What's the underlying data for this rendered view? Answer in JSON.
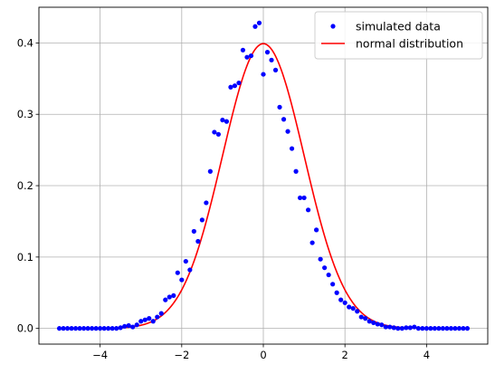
{
  "chart_data": {
    "type": "scatter",
    "title": "",
    "xlabel": "",
    "ylabel": "",
    "xlim": [
      -5.5,
      5.5
    ],
    "ylim": [
      -0.022,
      0.45
    ],
    "grid": true,
    "legend_position": "top-right",
    "x_ticks": [
      {
        "value": -4,
        "label": "−4"
      },
      {
        "value": -2,
        "label": "−2"
      },
      {
        "value": 0,
        "label": "0"
      },
      {
        "value": 2,
        "label": "2"
      },
      {
        "value": 4,
        "label": "4"
      }
    ],
    "y_ticks": [
      {
        "value": 0.0,
        "label": "0.0"
      },
      {
        "value": 0.1,
        "label": "0.1"
      },
      {
        "value": 0.2,
        "label": "0.2"
      },
      {
        "value": 0.3,
        "label": "0.3"
      },
      {
        "value": 0.4,
        "label": "0.4"
      }
    ],
    "series": [
      {
        "name": "simulated data",
        "style": "points",
        "color": "#0000ff",
        "x": [
          -5.0,
          -4.9,
          -4.8,
          -4.7,
          -4.6,
          -4.5,
          -4.4,
          -4.3,
          -4.2,
          -4.1,
          -4.0,
          -3.9,
          -3.8,
          -3.7,
          -3.6,
          -3.5,
          -3.4,
          -3.3,
          -3.2,
          -3.1,
          -3.0,
          -2.9,
          -2.8,
          -2.7,
          -2.6,
          -2.5,
          -2.4,
          -2.3,
          -2.2,
          -2.1,
          -2.0,
          -1.9,
          -1.8,
          -1.7,
          -1.6,
          -1.5,
          -1.4,
          -1.3,
          -1.2,
          -1.1,
          -1.0,
          -0.9,
          -0.8,
          -0.7,
          -0.6,
          -0.5,
          -0.4,
          -0.3,
          -0.2,
          -0.1,
          0.0,
          0.1,
          0.2,
          0.3,
          0.4,
          0.5,
          0.6,
          0.7,
          0.8,
          0.9,
          1.0,
          1.1,
          1.2,
          1.3,
          1.4,
          1.5,
          1.6,
          1.7,
          1.8,
          1.9,
          2.0,
          2.1,
          2.2,
          2.3,
          2.4,
          2.5,
          2.6,
          2.7,
          2.8,
          2.9,
          3.0,
          3.1,
          3.2,
          3.3,
          3.4,
          3.5,
          3.6,
          3.7,
          3.8,
          3.9,
          4.0,
          4.1,
          4.2,
          4.3,
          4.4,
          4.5,
          4.6,
          4.7,
          4.8,
          4.9,
          5.0
        ],
        "y": [
          0.0,
          0.0,
          0.0,
          0.0,
          0.0,
          0.0,
          0.0,
          0.0,
          0.0,
          0.0,
          0.0,
          0.0,
          0.0,
          0.0,
          0.0,
          0.001,
          0.003,
          0.004,
          0.002,
          0.005,
          0.01,
          0.012,
          0.014,
          0.01,
          0.016,
          0.021,
          0.04,
          0.044,
          0.046,
          0.078,
          0.068,
          0.094,
          0.082,
          0.136,
          0.122,
          0.152,
          0.176,
          0.22,
          0.275,
          0.272,
          0.292,
          0.29,
          0.338,
          0.34,
          0.344,
          0.39,
          0.38,
          0.382,
          0.423,
          0.428,
          0.356,
          0.387,
          0.376,
          0.362,
          0.31,
          0.293,
          0.276,
          0.252,
          0.22,
          0.183,
          0.183,
          0.166,
          0.12,
          0.138,
          0.097,
          0.085,
          0.075,
          0.062,
          0.05,
          0.04,
          0.036,
          0.03,
          0.028,
          0.024,
          0.016,
          0.014,
          0.01,
          0.008,
          0.006,
          0.005,
          0.002,
          0.002,
          0.001,
          0.0,
          0.0,
          0.001,
          0.001,
          0.002,
          0.0,
          0.0,
          0.0,
          0.0,
          0.0,
          0.0,
          0.0,
          0.0,
          0.0,
          0.0,
          0.0,
          0.0,
          0.0
        ]
      },
      {
        "name": "normal distribution",
        "style": "line",
        "color": "#ff0000",
        "function": "normal",
        "mean": 0,
        "std": 1,
        "x_range": [
          -5,
          5
        ]
      }
    ]
  }
}
